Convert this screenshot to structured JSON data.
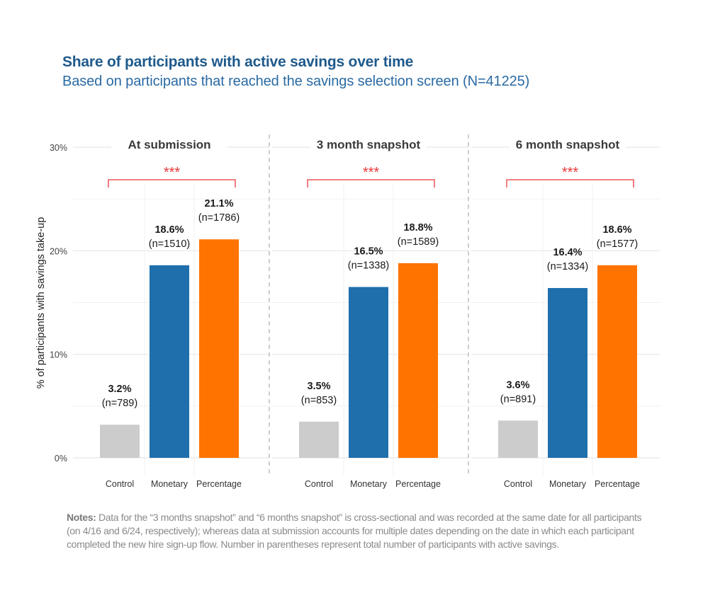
{
  "header": {
    "title": "Share of participants with active savings over time",
    "subtitle": "Based on participants that reached the savings selection screen (N=41225)"
  },
  "colors": {
    "Control": "#cccccc",
    "Monetary": "#1f6fac",
    "Percentage": "#ff7300",
    "significance": "#e8393a",
    "title": "#1f5a8c",
    "subtitle": "#2a6aa3"
  },
  "chart_data": {
    "type": "bar",
    "title": "Share of participants with active savings over time",
    "subtitle": "Based on participants that reached the savings selection screen (N=41225)",
    "ylabel": "% of participants with savings take-up",
    "xlabel": "",
    "ylim": [
      0,
      30
    ],
    "yticks": [
      0,
      10,
      20,
      30
    ],
    "ytick_labels": [
      "0%",
      "10%",
      "20%",
      "30%"
    ],
    "minor_gridlines": [
      5,
      15,
      25
    ],
    "grid": true,
    "categories": [
      "Control",
      "Monetary",
      "Percentage"
    ],
    "facets": [
      {
        "name": "At submission",
        "values": [
          3.2,
          18.6,
          21.1
        ],
        "value_labels": [
          "3.2%",
          "18.6%",
          "21.1%"
        ],
        "n_labels": [
          "(n=789)",
          "(n=1510)",
          "(n=1786)"
        ],
        "significance": "***"
      },
      {
        "name": "3 month snapshot",
        "values": [
          3.5,
          16.5,
          18.8
        ],
        "value_labels": [
          "3.5%",
          "16.5%",
          "18.8%"
        ],
        "n_labels": [
          "(n=853)",
          "(n=1338)",
          "(n=1589)"
        ],
        "significance": "***"
      },
      {
        "name": "6 month snapshot",
        "values": [
          3.6,
          16.4,
          18.6
        ],
        "value_labels": [
          "3.6%",
          "16.4%",
          "18.6%"
        ],
        "n_labels": [
          "(n=891)",
          "(n=1334)",
          "(n=1577)"
        ],
        "significance": "***"
      }
    ]
  },
  "notes": {
    "label": "Notes:",
    "text": " Data for the “3 months snapshot” and “6 months snapshot” is cross-sectional and was recorded at the same date for all participants (on  4/16 and 6/24, respectively); whereas data at submission accounts for multiple dates depending on the date in which each participant completed the new hire sign-up flow. Number in parentheses represent total number of participants with active savings."
  }
}
